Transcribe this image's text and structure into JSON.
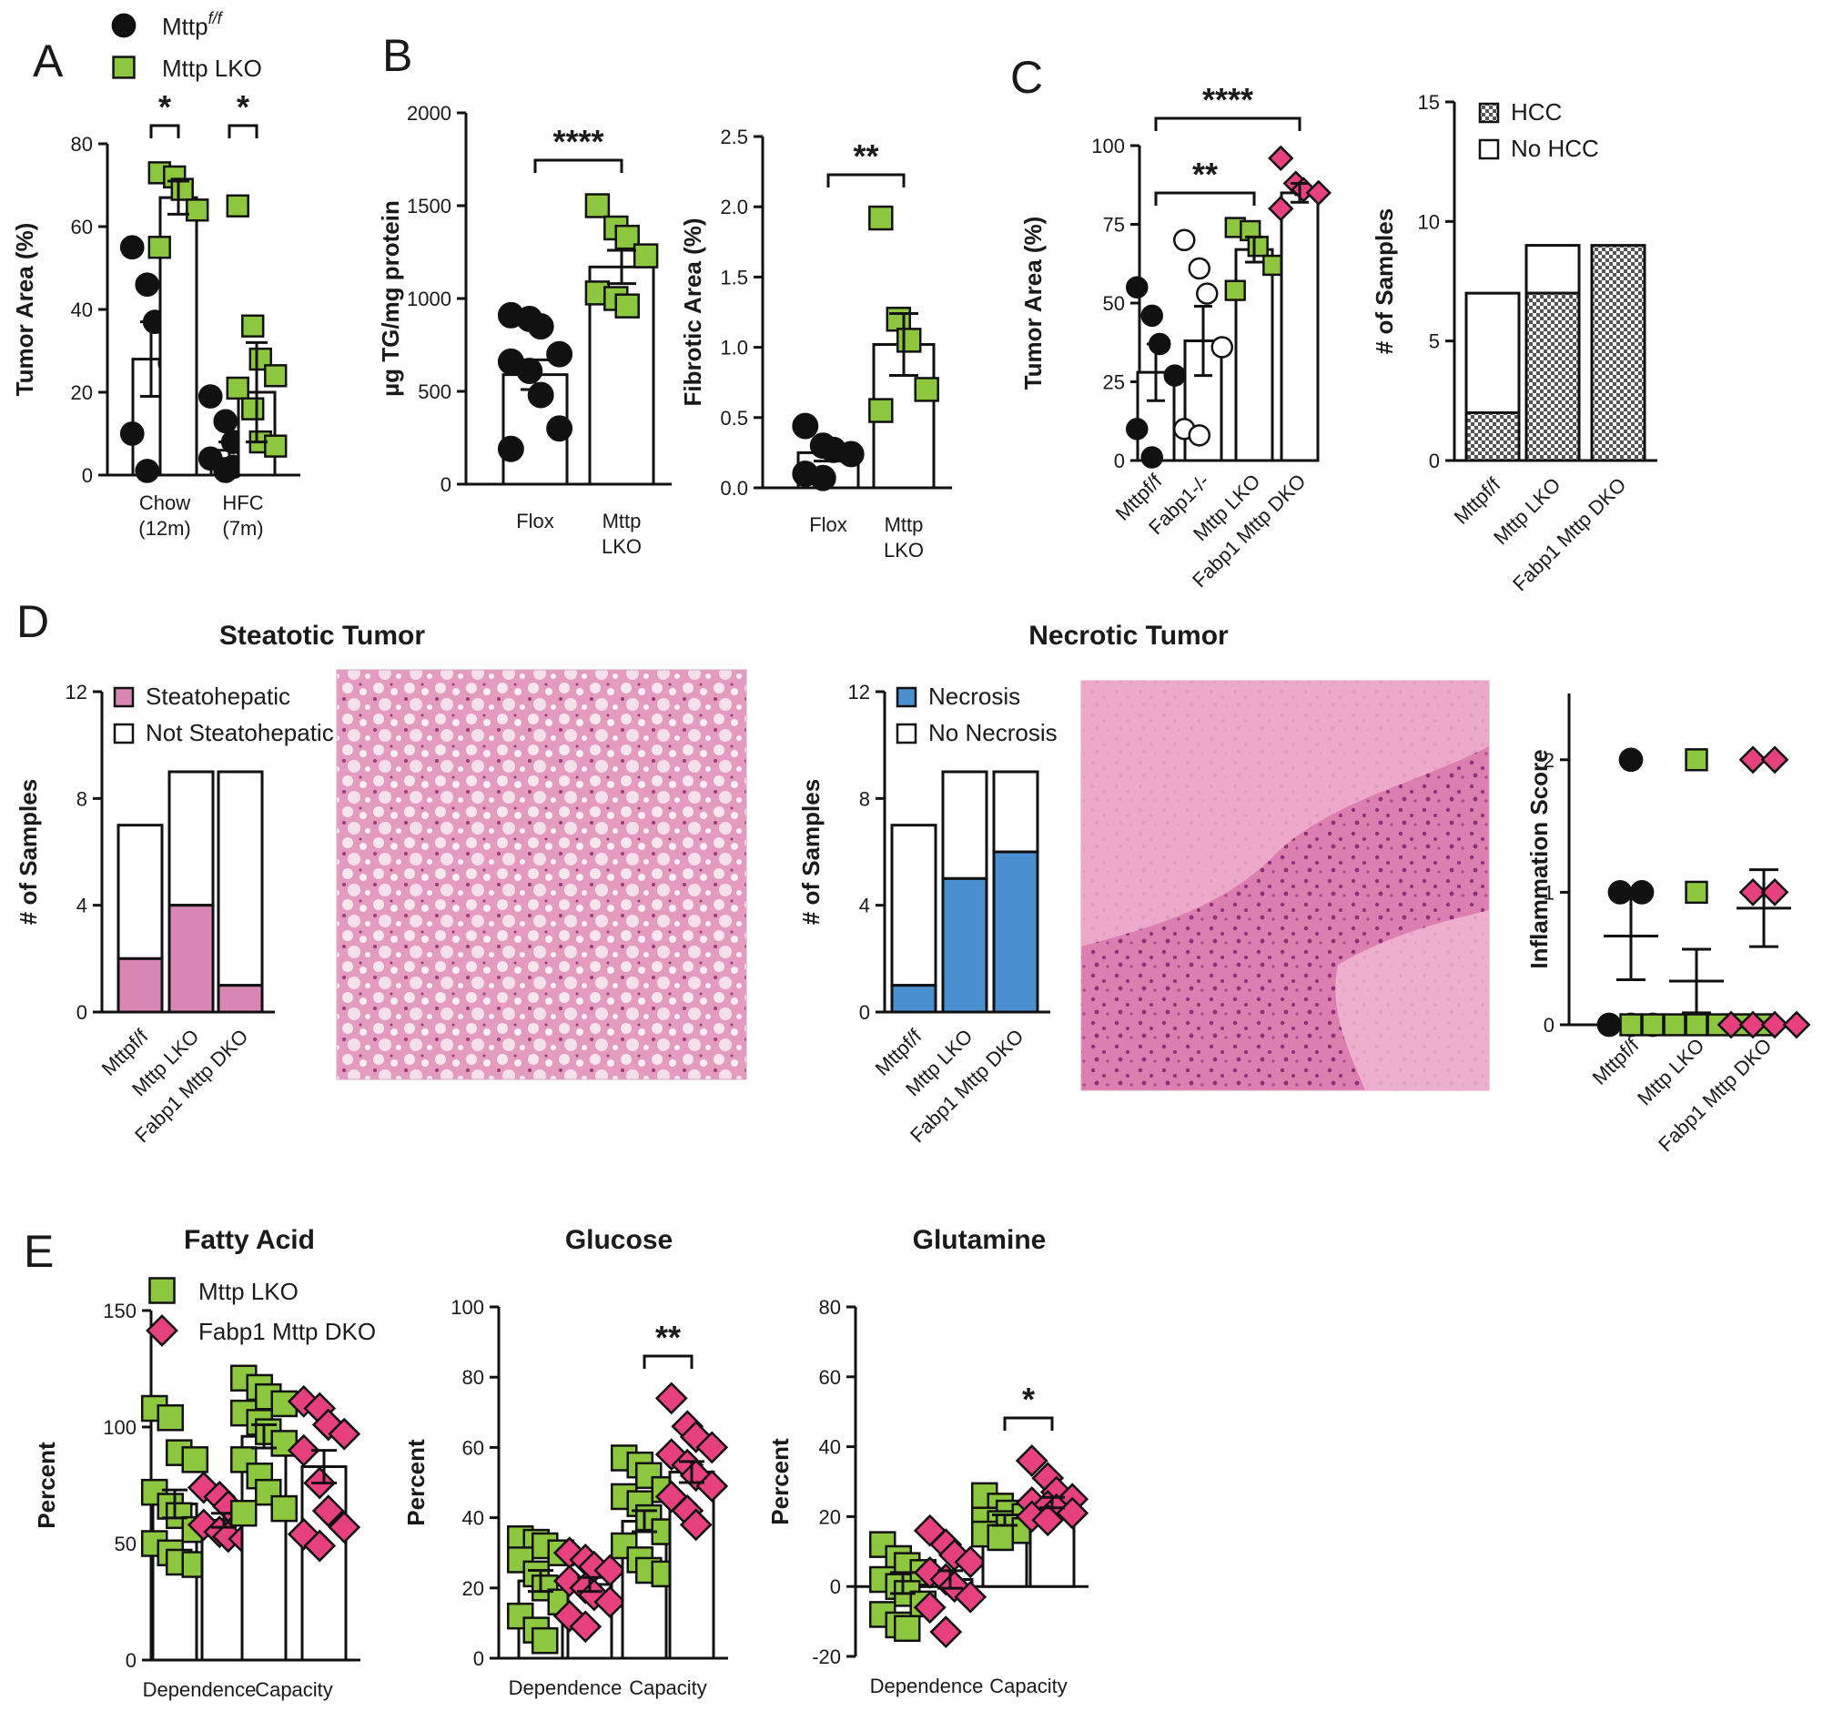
{
  "colors": {
    "green": "#8dc63f",
    "pink": "#e7407e",
    "blue": "#4a8fcf",
    "steato": "#d986b5",
    "black": "#111111",
    "hcc_fill": "#8a8a8a"
  },
  "panels": {
    "A": {
      "letter": "A"
    },
    "B": {
      "letter": "B"
    },
    "C": {
      "letter": "C"
    },
    "D": {
      "letter": "D",
      "steatotic_title": "Steatotic Tumor",
      "necrotic_title": "Necrotic Tumor"
    },
    "E": {
      "letter": "E",
      "fa_title": "Fatty Acid",
      "glc_title": "Glucose",
      "gln_title": "Glutamine"
    }
  },
  "chart_data": [
    {
      "id": "A",
      "type": "bar",
      "ylabel": "Tumor Area (%)",
      "ylim": [
        0,
        80
      ],
      "yticks": [
        0,
        20,
        40,
        60,
        80
      ],
      "legend": [
        "Mttpf/f",
        "Mttp LKO"
      ],
      "groups": [
        {
          "label": "Chow\n(12m)",
          "sig": "*"
        },
        {
          "label": "HFC\n(7m)",
          "sig": "*"
        }
      ],
      "series": [
        {
          "name": "Mttpf/f",
          "marker": "circle",
          "color": "#111111",
          "means": [
            28,
            6
          ],
          "errors": [
            9,
            2
          ],
          "points": [
            [
              55,
              46,
              37,
              27,
              10,
              1
            ],
            [
              19,
              13,
              8,
              6,
              4,
              1,
              2
            ]
          ]
        },
        {
          "name": "Mttp LKO",
          "marker": "square",
          "color": "#8dc63f",
          "means": [
            67,
            20
          ],
          "errors": [
            4,
            12
          ],
          "points": [
            [
              73,
              72,
              69,
              64,
              55
            ],
            [
              65,
              36,
              28,
              24,
              21,
              16,
              8,
              7
            ]
          ]
        }
      ]
    },
    {
      "id": "B1",
      "type": "bar",
      "ylabel": "µg TG/mg protein",
      "ylim": [
        0,
        2000
      ],
      "yticks": [
        0,
        500,
        1000,
        1500,
        2000
      ],
      "categories": [
        "Flox",
        "Mttp\nLKO"
      ],
      "sig": "****",
      "series": [
        {
          "name": "Flox",
          "marker": "circle",
          "color": "#111111",
          "mean": 590,
          "error": 80,
          "points": [
            910,
            890,
            850,
            700,
            660,
            610,
            480,
            300,
            190
          ]
        },
        {
          "name": "Mttp LKO",
          "marker": "square",
          "color": "#8dc63f",
          "mean": 1170,
          "error": 90,
          "points": [
            1500,
            1380,
            1330,
            1230,
            1030,
            1000,
            960
          ]
        }
      ]
    },
    {
      "id": "B2",
      "type": "bar",
      "ylabel": "Fibrotic Area (%)",
      "ylim": [
        0,
        2.5
      ],
      "yticks": [
        0.0,
        0.5,
        1.0,
        1.5,
        2.0,
        2.5
      ],
      "categories": [
        "Flox",
        "Mttp\nLKO"
      ],
      "sig": "**",
      "series": [
        {
          "name": "Flox",
          "marker": "circle",
          "color": "#111111",
          "mean": 0.25,
          "error": 0.06,
          "points": [
            0.44,
            0.3,
            0.27,
            0.24,
            0.1,
            0.07
          ]
        },
        {
          "name": "Mttp LKO",
          "marker": "square",
          "color": "#8dc63f",
          "mean": 1.02,
          "error": 0.22,
          "points": [
            1.92,
            1.2,
            1.05,
            0.7,
            0.55
          ]
        }
      ]
    },
    {
      "id": "C1",
      "type": "bar",
      "ylabel": "Tumor Area (%)",
      "ylim": [
        0,
        100
      ],
      "yticks": [
        0,
        25,
        50,
        75,
        100
      ],
      "categories": [
        "Mttpf/f",
        "Fabp1-/-",
        "Mttp LKO",
        "Fabp1 Mttp DKO"
      ],
      "sig": [
        {
          "from": 0,
          "to": 2,
          "label": "**"
        },
        {
          "from": 0,
          "to": 3,
          "label": "****"
        }
      ],
      "series": [
        {
          "marker": "circle",
          "color": "#111111",
          "mean": 28,
          "error": 9,
          "points": [
            55,
            46,
            37,
            27,
            10,
            1
          ]
        },
        {
          "marker": "open-circle",
          "color": "#ffffff",
          "mean": 38,
          "error": 11,
          "points": [
            70,
            61,
            53,
            36,
            10,
            8
          ]
        },
        {
          "marker": "square",
          "color": "#8dc63f",
          "mean": 67,
          "error": 4,
          "points": [
            74,
            73,
            68,
            62,
            54
          ]
        },
        {
          "marker": "diamond",
          "color": "#e7407e",
          "mean": 85,
          "error": 3,
          "points": [
            96,
            88,
            86,
            85,
            80
          ]
        }
      ]
    },
    {
      "id": "C2",
      "type": "bar",
      "stacked": true,
      "ylabel": "# of Samples",
      "ylim": [
        0,
        15
      ],
      "yticks": [
        0,
        5,
        10,
        15
      ],
      "categories": [
        "Mttpf/f",
        "Mttp LKO",
        "Fabp1 Mttp DKO"
      ],
      "legend": [
        "HCC",
        "No HCC"
      ],
      "series": [
        {
          "name": "HCC",
          "values": [
            2,
            7,
            9
          ]
        },
        {
          "name": "No HCC",
          "values": [
            5,
            2,
            0
          ]
        }
      ]
    },
    {
      "id": "D1",
      "type": "bar",
      "stacked": true,
      "ylabel": "# of Samples",
      "ylim": [
        0,
        12
      ],
      "yticks": [
        0,
        4,
        8,
        12
      ],
      "categories": [
        "Mttpf/f",
        "Mttp LKO",
        "Fabp1 Mttp DKO"
      ],
      "legend": [
        "Steatohepatic",
        "Not Steatohepatic"
      ],
      "series": [
        {
          "name": "Steatohepatic",
          "values": [
            2,
            4,
            1
          ]
        },
        {
          "name": "Not Steatohepatic",
          "values": [
            5,
            5,
            8
          ]
        }
      ]
    },
    {
      "id": "D2",
      "type": "bar",
      "stacked": true,
      "ylabel": "# of Samples",
      "ylim": [
        0,
        12
      ],
      "yticks": [
        0,
        4,
        8,
        12
      ],
      "categories": [
        "Mttpf/f",
        "Mttp LKO",
        "Fabp1 Mttp DKO"
      ],
      "legend": [
        "Necrosis",
        "No Necrosis"
      ],
      "series": [
        {
          "name": "Necrosis",
          "values": [
            1,
            5,
            6
          ]
        },
        {
          "name": "No Necrosis",
          "values": [
            6,
            4,
            3
          ]
        }
      ]
    },
    {
      "id": "D3",
      "type": "scatter",
      "ylabel": "Inflammation Score",
      "ylim": [
        0,
        2.5
      ],
      "yticks": [
        0,
        1,
        2
      ],
      "categories": [
        "Mttpf/f",
        "Mttp LKO",
        "Fabp1 Mttp DKO"
      ],
      "series": [
        {
          "marker": "circle",
          "color": "#111111",
          "mean": 0.67,
          "error": 0.33,
          "points": [
            2,
            1,
            1,
            0,
            0,
            0
          ]
        },
        {
          "marker": "square",
          "color": "#8dc63f",
          "mean": 0.33,
          "error": 0.24,
          "points": [
            2,
            1,
            0,
            0,
            0,
            0,
            0,
            0,
            0
          ]
        },
        {
          "marker": "diamond",
          "color": "#e7407e",
          "mean": 0.88,
          "error": 0.29,
          "points": [
            2,
            2,
            1,
            1,
            0,
            0,
            0,
            0
          ]
        }
      ]
    },
    {
      "id": "E1",
      "type": "bar",
      "ylabel": "Percent",
      "ylim": [
        0,
        150
      ],
      "yticks": [
        0,
        50,
        100,
        150
      ],
      "groups": [
        "Dependence",
        "Capacity"
      ],
      "legend": [
        "Mttp LKO",
        "Fabp1 Mttp DKO"
      ],
      "series": [
        {
          "name": "Mttp LKO",
          "marker": "square",
          "color": "#8dc63f",
          "means": [
            67,
            96
          ],
          "errors": [
            6,
            5
          ],
          "points": [
            [
              108,
              104,
              89,
              86,
              72,
              66,
              62,
              56,
              50,
              46,
              42,
              41
            ],
            [
              121,
              117,
              113,
              110,
              106,
              102,
              98,
              93,
              86,
              79,
              72,
              65,
              63
            ]
          ]
        },
        {
          "name": "Fabp1 Mttp DKO",
          "marker": "diamond",
          "color": "#e7407e",
          "means": [
            60,
            83
          ],
          "errors": [
            3,
            7
          ],
          "points": [
            [
              74,
              70,
              66,
              63,
              58,
              55,
              53,
              52
            ],
            [
              111,
              108,
              101,
              97,
              90,
              76,
              64,
              57,
              54,
              49
            ]
          ]
        }
      ]
    },
    {
      "id": "E2",
      "type": "bar",
      "ylabel": "Percent",
      "ylim": [
        0,
        100
      ],
      "yticks": [
        0,
        20,
        40,
        60,
        80,
        100
      ],
      "groups": [
        "Dependence",
        "Capacity"
      ],
      "sig": "**",
      "series": [
        {
          "name": "Mttp LKO",
          "marker": "square",
          "color": "#8dc63f",
          "means": [
            22,
            39
          ],
          "errors": [
            3,
            3
          ],
          "points": [
            [
              34,
              33,
              32,
              30,
              28,
              24,
              20,
              16,
              12,
              8,
              5
            ],
            [
              57,
              55,
              52,
              48,
              46,
              44,
              40,
              36,
              32,
              28,
              25,
              24
            ]
          ]
        },
        {
          "name": "Fabp1 Mttp DKO",
          "marker": "diamond",
          "color": "#e7407e",
          "means": [
            21,
            53
          ],
          "errors": [
            2,
            3
          ],
          "points": [
            [
              30,
              28,
              26,
              25,
              22,
              20,
              18,
              16,
              12,
              9
            ],
            [
              74,
              66,
              63,
              60,
              58,
              55,
              52,
              49,
              46,
              42,
              38
            ]
          ]
        }
      ]
    },
    {
      "id": "E3",
      "type": "bar",
      "ylabel": "Percent",
      "ylim": [
        -20,
        80
      ],
      "yticks": [
        -20,
        0,
        20,
        40,
        60,
        80
      ],
      "groups": [
        "Dependence",
        "Capacity"
      ],
      "sig": "*",
      "series": [
        {
          "name": "Mttp LKO",
          "marker": "square",
          "color": "#8dc63f",
          "means": [
            1,
            19
          ],
          "errors": [
            3,
            1.5
          ],
          "points": [
            [
              12,
              8,
              6,
              4,
              2,
              0,
              -2,
              -5,
              -8,
              -11,
              -12
            ],
            [
              26,
              23,
              21,
              20,
              19,
              18,
              17,
              16,
              15,
              14
            ]
          ]
        },
        {
          "name": "Fabp1 Mttp DKO",
          "marker": "diamond",
          "color": "#e7407e",
          "means": [
            2,
            24
          ],
          "errors": [
            2.5,
            1.5
          ],
          "points": [
            [
              16,
              12,
              9,
              7,
              4,
              2,
              0,
              -3,
              -6,
              -13
            ],
            [
              36,
              31,
              27,
              25,
              24,
              23,
              22,
              21,
              20,
              19
            ]
          ]
        }
      ]
    }
  ]
}
